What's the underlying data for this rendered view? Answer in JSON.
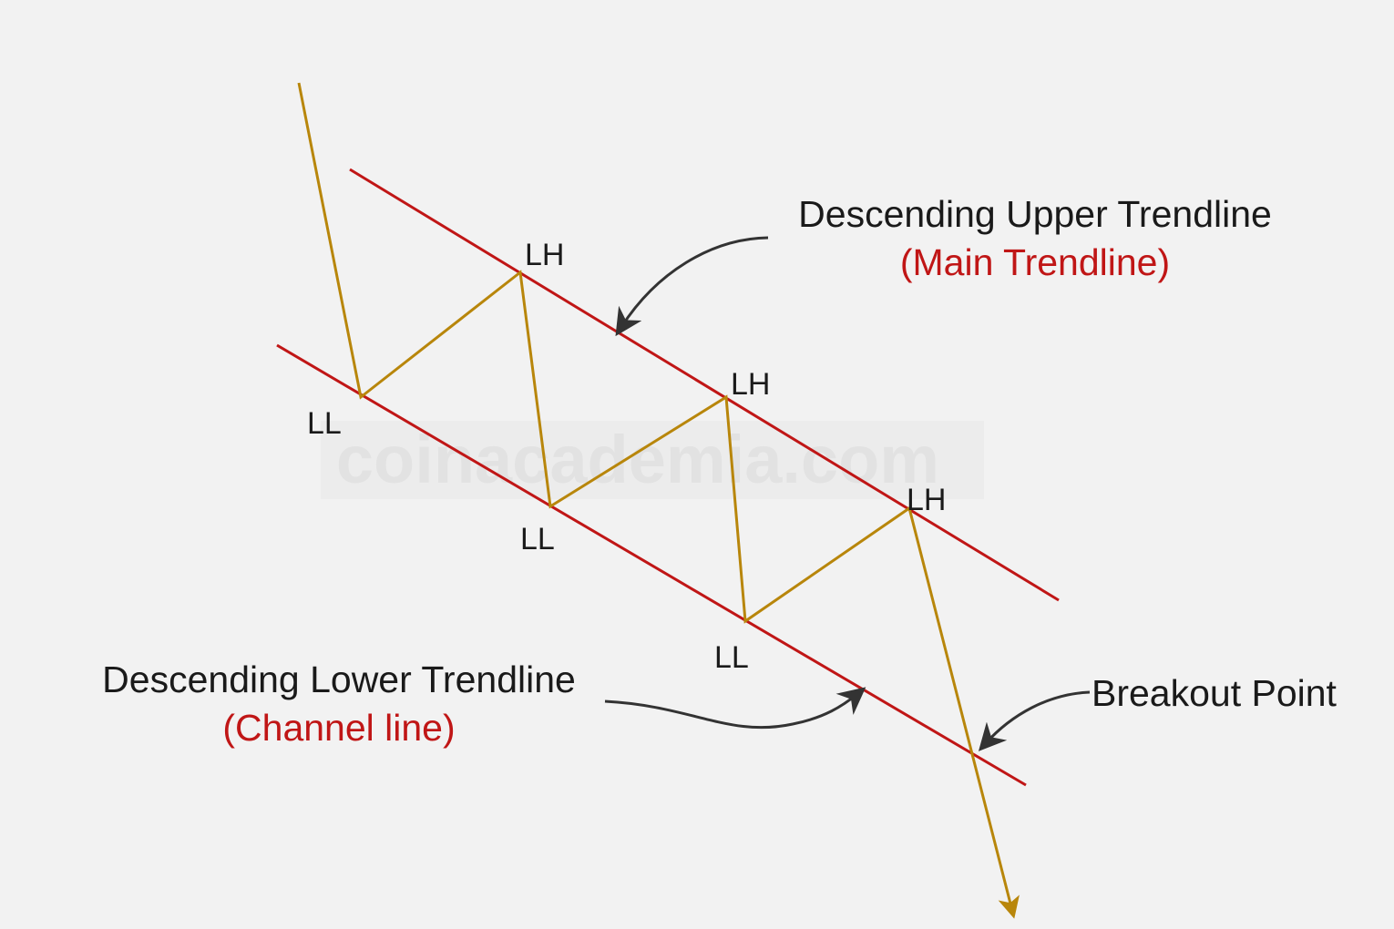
{
  "watermark": "coinacademia.com",
  "colors": {
    "background": "#f2f2f2",
    "trendline": "#c01616",
    "price_path": "#b8860b",
    "arrow": "#333333",
    "text": "#1a1a1a",
    "subtitle": "#c01616"
  },
  "upper_trendline": {
    "title": "Descending Upper Trendline",
    "subtitle": "(Main Trendline)"
  },
  "lower_trendline": {
    "title": "Descending Lower Trendline",
    "subtitle": "(Channel line)"
  },
  "breakout": {
    "label": "Breakout Point"
  },
  "points": {
    "lh": [
      "LH",
      "LH",
      "LH"
    ],
    "ll": [
      "LL",
      "LL",
      "LL"
    ]
  }
}
